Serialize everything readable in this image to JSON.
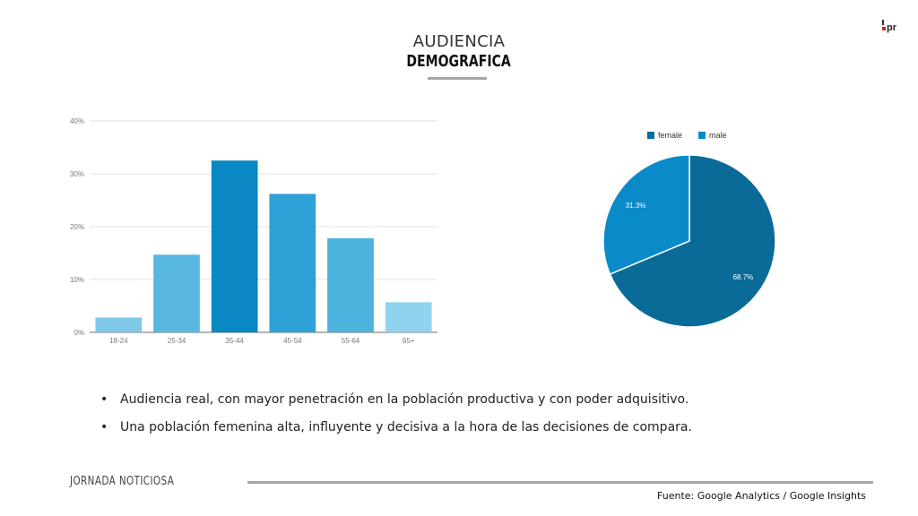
{
  "header": {
    "title_line1": "AUDIENCIA",
    "title_line2": "DEMOGRAFICA",
    "logo_text": "pr"
  },
  "chart_data": [
    {
      "type": "bar",
      "categories": [
        "18-24",
        "25-34",
        "35-44",
        "45-54",
        "55-64",
        "65+"
      ],
      "values": [
        2.8,
        14.7,
        32.5,
        26.2,
        17.8,
        5.7
      ],
      "colors": [
        "#7fc8e8",
        "#5ab8e0",
        "#0a88c4",
        "#2ea1d6",
        "#4eb2df",
        "#8fd3ee"
      ],
      "y_ticks": [
        "0%",
        "10%",
        "20%",
        "30%",
        "40%"
      ],
      "ylim": [
        0,
        40
      ],
      "grid": true
    },
    {
      "type": "pie",
      "legend_position": "top",
      "slices": [
        {
          "label": "female",
          "value": 68.7,
          "display": "68.7%",
          "color": "#0a6b99"
        },
        {
          "label": "male",
          "value": 31.3,
          "display": "31.3%",
          "color": "#0a8ac9"
        }
      ]
    }
  ],
  "bullets": [
    "Audiencia real, con mayor penetración en la población productiva y con poder adquisitivo.",
    "Una población femenina alta, influyente y decisiva a la hora de las decisiones de compara."
  ],
  "footer": {
    "left": "JORNADA NOTICIOSA",
    "right": "Fuente: Google Analytics / Google Insights"
  }
}
